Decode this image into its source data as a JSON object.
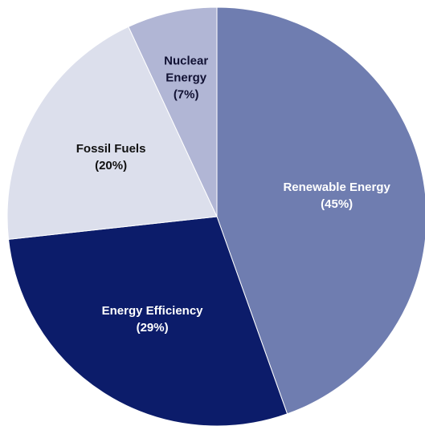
{
  "chart_data": {
    "type": "pie",
    "categories": [
      "Renewable Energy",
      "Energy Efficiency",
      "Fossil Fuels",
      "Nuclear Energy"
    ],
    "values": [
      45,
      29,
      20,
      7
    ],
    "value_labels": [
      "(45%)",
      "(29%)",
      "(20%)",
      "(7%)"
    ],
    "colors": [
      "#6f7db0",
      "#0c1c6a",
      "#dcdfec",
      "#b1b6d5"
    ],
    "label_colors": [
      "#ffffff",
      "#ffffff",
      "#111111",
      "#111133"
    ]
  }
}
